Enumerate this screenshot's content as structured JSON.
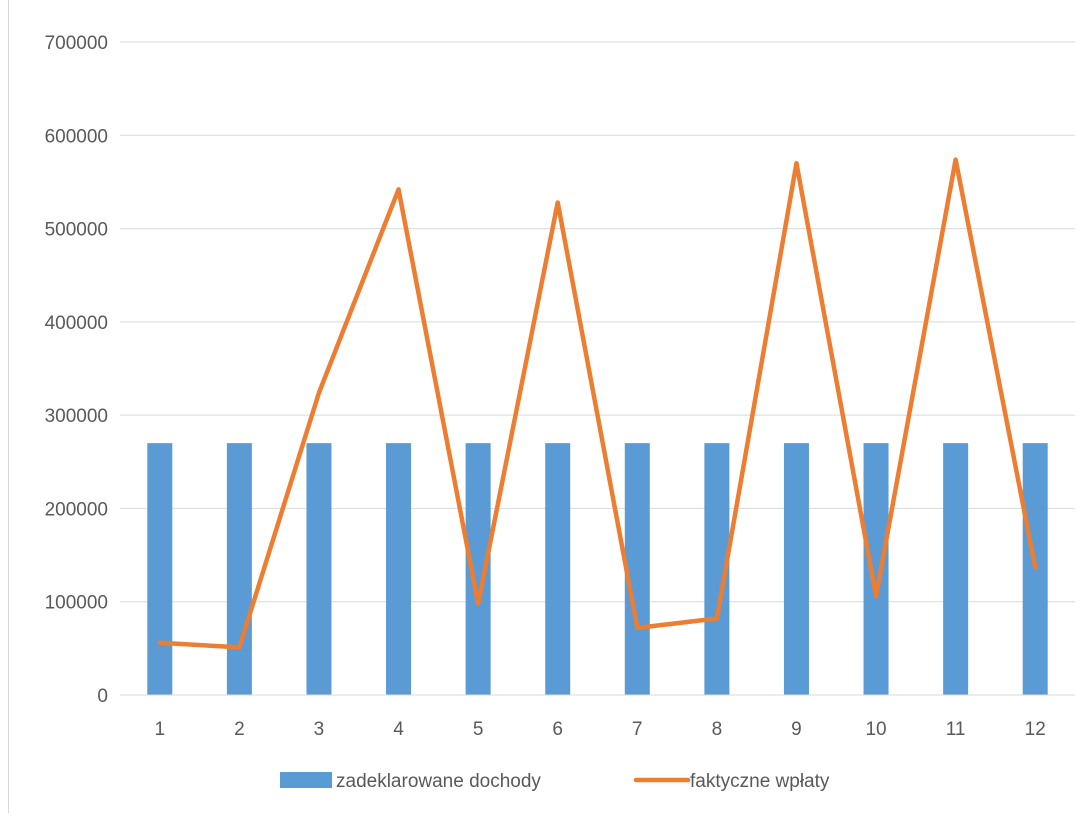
{
  "chart_data": {
    "type": "bar",
    "title": "",
    "xlabel": "",
    "ylabel": "",
    "categories": [
      "1",
      "2",
      "3",
      "4",
      "5",
      "6",
      "7",
      "8",
      "9",
      "10",
      "11",
      "12"
    ],
    "ylim": [
      0,
      700000
    ],
    "yticks": [
      "0",
      "100000",
      "200000",
      "300000",
      "400000",
      "500000",
      "600000",
      "700000"
    ],
    "grid": true,
    "legend_position": "bottom",
    "series": [
      {
        "name": "zadeklarowane dochody",
        "type": "bar",
        "color": "#5b9bd5",
        "values": [
          270000,
          270000,
          270000,
          270000,
          270000,
          270000,
          270000,
          270000,
          270000,
          270000,
          270000,
          270000
        ]
      },
      {
        "name": "faktyczne wpłaty",
        "type": "line",
        "color": "#ed7d31",
        "values": [
          56000,
          51000,
          324000,
          542000,
          98000,
          528000,
          72000,
          82000,
          570000,
          106000,
          574000,
          137000
        ]
      }
    ]
  }
}
